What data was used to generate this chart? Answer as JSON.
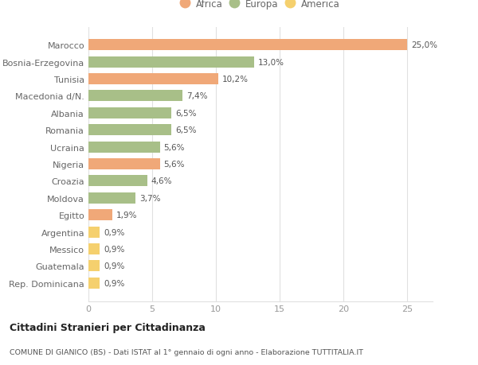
{
  "categories": [
    "Rep. Dominicana",
    "Guatemala",
    "Messico",
    "Argentina",
    "Egitto",
    "Moldova",
    "Croazia",
    "Nigeria",
    "Ucraina",
    "Romania",
    "Albania",
    "Macedonia d/N.",
    "Tunisia",
    "Bosnia-Erzegovina",
    "Marocco"
  ],
  "values": [
    0.9,
    0.9,
    0.9,
    0.9,
    1.9,
    3.7,
    4.6,
    5.6,
    5.6,
    6.5,
    6.5,
    7.4,
    10.2,
    13.0,
    25.0
  ],
  "colors": [
    "#f5d06e",
    "#f5d06e",
    "#f5d06e",
    "#f5d06e",
    "#f0a878",
    "#a8bf88",
    "#a8bf88",
    "#f0a878",
    "#a8bf88",
    "#a8bf88",
    "#a8bf88",
    "#a8bf88",
    "#f0a878",
    "#a8bf88",
    "#f0a878"
  ],
  "labels": [
    "0,9%",
    "0,9%",
    "0,9%",
    "0,9%",
    "1,9%",
    "3,7%",
    "4,6%",
    "5,6%",
    "5,6%",
    "6,5%",
    "6,5%",
    "7,4%",
    "10,2%",
    "13,0%",
    "25,0%"
  ],
  "legend": [
    {
      "label": "Africa",
      "color": "#f0a878"
    },
    {
      "label": "Europa",
      "color": "#a8bf88"
    },
    {
      "label": "America",
      "color": "#f5d06e"
    }
  ],
  "xlim": [
    0,
    27
  ],
  "xticks": [
    0,
    5,
    10,
    15,
    20,
    25
  ],
  "title": "Cittadini Stranieri per Cittadinanza",
  "subtitle": "COMUNE DI GIANICO (BS) - Dati ISTAT al 1° gennaio di ogni anno - Elaborazione TUTTITALIA.IT",
  "bg_color": "#ffffff",
  "bar_height": 0.65,
  "grid_color": "#e0e0e0",
  "label_color": "#555555",
  "ytick_color": "#666666",
  "xtick_color": "#999999"
}
